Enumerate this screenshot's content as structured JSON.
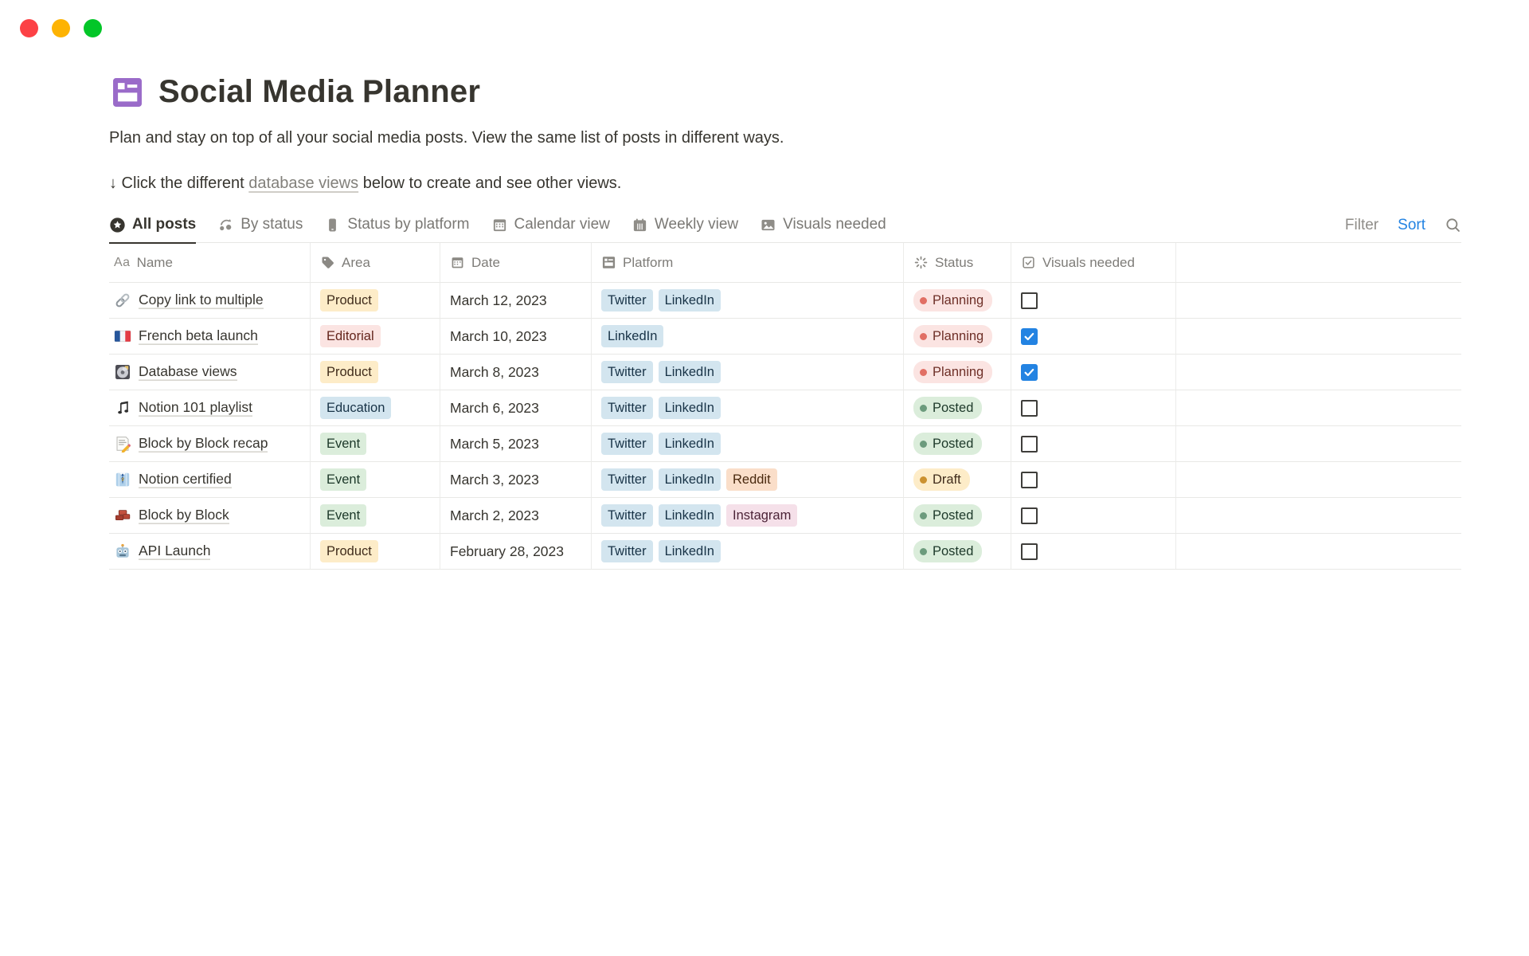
{
  "window": {
    "traffic_lights": [
      {
        "name": "close",
        "color": "#FC4145"
      },
      {
        "name": "minimize",
        "color": "#FDB303"
      },
      {
        "name": "zoom",
        "color": "#03C628"
      }
    ]
  },
  "page": {
    "icon": "board-database-icon",
    "icon_color": "#9A6BC9",
    "title": "Social Media Planner",
    "description": "Plan and stay on top of all your social media posts. View the same list of posts in different ways.",
    "instruction": {
      "prefix": "↓ Click the different ",
      "link": "database views",
      "suffix": " below to create and see other views."
    }
  },
  "toolbar": {
    "tabs": [
      {
        "label": "All posts",
        "icon": "star-circle-icon",
        "active": true
      },
      {
        "label": "By status",
        "icon": "status-cycle-icon",
        "active": false
      },
      {
        "label": "Status by platform",
        "icon": "phone-icon",
        "active": false
      },
      {
        "label": "Calendar view",
        "icon": "calendar-icon",
        "active": false
      },
      {
        "label": "Weekly view",
        "icon": "weekly-calendar-icon",
        "active": false
      },
      {
        "label": "Visuals needed",
        "icon": "image-icon",
        "active": false
      }
    ],
    "filter_label": "Filter",
    "sort_label": "Sort",
    "sort_color": "#2383E2",
    "search_icon": "search-icon"
  },
  "table": {
    "columns": [
      {
        "label": "Name",
        "icon": "text-aa-icon"
      },
      {
        "label": "Area",
        "icon": "tag-icon"
      },
      {
        "label": "Date",
        "icon": "date-icon"
      },
      {
        "label": "Platform",
        "icon": "database-property-icon"
      },
      {
        "label": "Status",
        "icon": "spinner-icon"
      },
      {
        "label": "Visuals needed",
        "icon": "checkbox-check-icon"
      }
    ],
    "tag_palette": {
      "yellow": {
        "bg": "#FDECC8",
        "text": "#402C1B"
      },
      "red": {
        "bg": "#FBE4E2",
        "text": "#64251C"
      },
      "blue": {
        "bg": "#D3E5EF",
        "text": "#183347"
      },
      "green": {
        "bg": "#DBEDDB",
        "text": "#1C3829"
      },
      "orange": {
        "bg": "#FADEC9",
        "text": "#49290E"
      },
      "pink": {
        "bg": "#F5E0E9",
        "text": "#4C2337"
      }
    },
    "status_palette": {
      "red": {
        "bg": "#FBE4E2",
        "dot": "#E16F64",
        "text": "#6E2F27"
      },
      "green": {
        "bg": "#DBEDDB",
        "dot": "#6C9B7D",
        "text": "#1C3829"
      },
      "yellow": {
        "bg": "#FDECC8",
        "dot": "#CB912F",
        "text": "#402C1B"
      }
    },
    "checkbox_checked_color": "#2383E2",
    "rows": [
      {
        "emoji": "link-emoji-icon",
        "name": "Copy link to multiple",
        "area": {
          "label": "Product",
          "color": "yellow"
        },
        "date": "March 12, 2023",
        "platforms": [
          {
            "label": "Twitter",
            "color": "blue"
          },
          {
            "label": "LinkedIn",
            "color": "blue"
          }
        ],
        "status": {
          "label": "Planning",
          "color": "red"
        },
        "visuals_needed": false
      },
      {
        "emoji": "france-flag-emoji-icon",
        "name": "French beta launch",
        "area": {
          "label": "Editorial",
          "color": "red"
        },
        "date": "March 10, 2023",
        "platforms": [
          {
            "label": "LinkedIn",
            "color": "blue"
          }
        ],
        "status": {
          "label": "Planning",
          "color": "red"
        },
        "visuals_needed": true
      },
      {
        "emoji": "minidisc-emoji-icon",
        "name": "Database views",
        "area": {
          "label": "Product",
          "color": "yellow"
        },
        "date": "March 8, 2023",
        "platforms": [
          {
            "label": "Twitter",
            "color": "blue"
          },
          {
            "label": "LinkedIn",
            "color": "blue"
          }
        ],
        "status": {
          "label": "Planning",
          "color": "red"
        },
        "visuals_needed": true
      },
      {
        "emoji": "music-note-emoji-icon",
        "name": "Notion 101 playlist",
        "area": {
          "label": "Education",
          "color": "blue"
        },
        "date": "March 6, 2023",
        "platforms": [
          {
            "label": "Twitter",
            "color": "blue"
          },
          {
            "label": "LinkedIn",
            "color": "blue"
          }
        ],
        "status": {
          "label": "Posted",
          "color": "green"
        },
        "visuals_needed": false
      },
      {
        "emoji": "memo-emoji-icon",
        "name": "Block by Block recap",
        "area": {
          "label": "Event",
          "color": "green"
        },
        "date": "March 5, 2023",
        "platforms": [
          {
            "label": "Twitter",
            "color": "blue"
          },
          {
            "label": "LinkedIn",
            "color": "blue"
          }
        ],
        "status": {
          "label": "Posted",
          "color": "green"
        },
        "visuals_needed": false
      },
      {
        "emoji": "shirt-tie-emoji-icon",
        "name": "Notion certified",
        "area": {
          "label": "Event",
          "color": "green"
        },
        "date": "March 3, 2023",
        "platforms": [
          {
            "label": "Twitter",
            "color": "blue"
          },
          {
            "label": "LinkedIn",
            "color": "blue"
          },
          {
            "label": "Reddit",
            "color": "orange"
          }
        ],
        "status": {
          "label": "Draft",
          "color": "yellow"
        },
        "visuals_needed": false
      },
      {
        "emoji": "bricks-emoji-icon",
        "name": "Block by Block",
        "area": {
          "label": "Event",
          "color": "green"
        },
        "date": "March 2, 2023",
        "platforms": [
          {
            "label": "Twitter",
            "color": "blue"
          },
          {
            "label": "LinkedIn",
            "color": "blue"
          },
          {
            "label": "Instagram",
            "color": "pink"
          }
        ],
        "status": {
          "label": "Posted",
          "color": "green"
        },
        "visuals_needed": false
      },
      {
        "emoji": "robot-emoji-icon",
        "name": "API Launch",
        "area": {
          "label": "Product",
          "color": "yellow"
        },
        "date": "February 28, 2023",
        "platforms": [
          {
            "label": "Twitter",
            "color": "blue"
          },
          {
            "label": "LinkedIn",
            "color": "blue"
          }
        ],
        "status": {
          "label": "Posted",
          "color": "green"
        },
        "visuals_needed": false
      }
    ]
  }
}
